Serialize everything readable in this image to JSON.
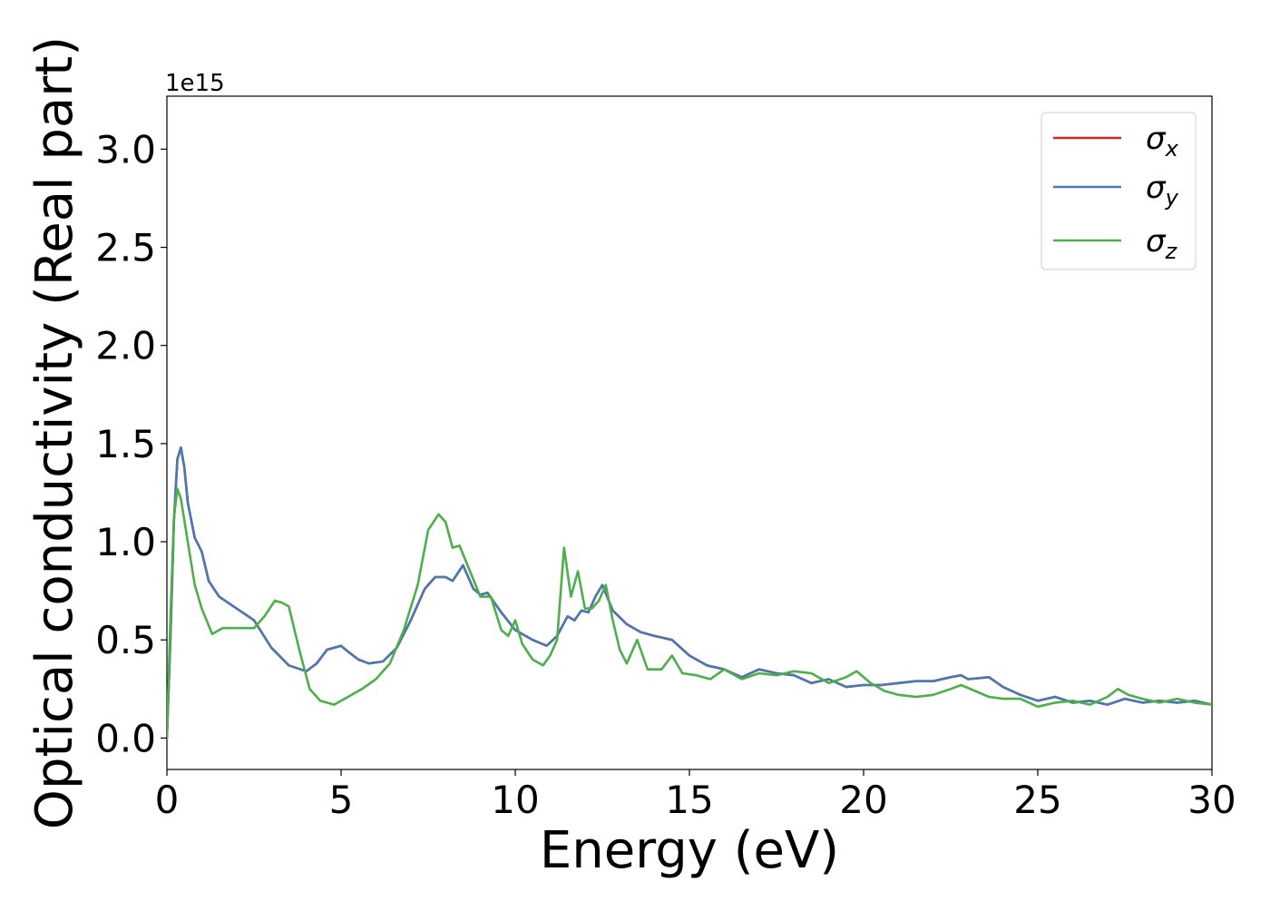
{
  "chart_data": {
    "type": "line",
    "xlabel": "Energy (eV)",
    "ylabel": "Optical conductivity (Real part)",
    "offset_label": "1e15",
    "scale": 1000000000000000.0,
    "xlim": [
      0,
      30
    ],
    "ylim": [
      -0.16,
      3.27
    ],
    "x_ticks": [
      0,
      5,
      10,
      15,
      20,
      25,
      30
    ],
    "y_ticks": [
      0.0,
      0.5,
      1.0,
      1.5,
      2.0,
      2.5,
      3.0
    ],
    "x_tick_labels": [
      "0",
      "5",
      "10",
      "15",
      "20",
      "25",
      "30"
    ],
    "y_tick_labels": [
      "0.0",
      "0.5",
      "1.0",
      "1.5",
      "2.0",
      "2.5",
      "3.0"
    ],
    "grid": false,
    "legend_position": "top-right",
    "series": [
      {
        "name": "σx",
        "legend_base": "σ",
        "legend_sub": "x",
        "color": "#d62728",
        "x": [
          0,
          0.1,
          0.2,
          0.3,
          0.4,
          0.5,
          0.6,
          0.8,
          1.0,
          1.2,
          1.5,
          2.0,
          2.5,
          3.0,
          3.5,
          4.0,
          4.3,
          4.6,
          5.0,
          5.2,
          5.5,
          5.8,
          6.2,
          6.6,
          7.0,
          7.4,
          7.7,
          8.0,
          8.2,
          8.5,
          8.8,
          9.0,
          9.2,
          9.6,
          10.0,
          10.5,
          10.9,
          11.2,
          11.5,
          11.7,
          11.9,
          12.1,
          12.3,
          12.5,
          12.8,
          13.2,
          13.6,
          14.0,
          14.5,
          15.0,
          15.5,
          16.0,
          16.5,
          17.0,
          17.5,
          18.0,
          18.5,
          19.0,
          19.5,
          20.0,
          20.5,
          21.0,
          21.5,
          22.0,
          22.5,
          22.8,
          23.0,
          23.6,
          24.0,
          24.5,
          25.0,
          25.5,
          26.0,
          26.5,
          27.0,
          27.5,
          28.0,
          28.5,
          29.0,
          29.5,
          30.0
        ],
        "values": [
          0.0,
          0.5,
          1.1,
          1.42,
          1.48,
          1.38,
          1.2,
          1.02,
          0.95,
          0.8,
          0.72,
          0.66,
          0.6,
          0.46,
          0.37,
          0.34,
          0.38,
          0.45,
          0.47,
          0.44,
          0.4,
          0.38,
          0.39,
          0.46,
          0.6,
          0.76,
          0.82,
          0.82,
          0.8,
          0.88,
          0.76,
          0.73,
          0.74,
          0.64,
          0.55,
          0.5,
          0.47,
          0.52,
          0.62,
          0.6,
          0.65,
          0.64,
          0.72,
          0.78,
          0.65,
          0.58,
          0.54,
          0.52,
          0.5,
          0.42,
          0.37,
          0.35,
          0.31,
          0.35,
          0.33,
          0.32,
          0.28,
          0.3,
          0.26,
          0.27,
          0.27,
          0.28,
          0.29,
          0.29,
          0.31,
          0.32,
          0.3,
          0.31,
          0.26,
          0.22,
          0.19,
          0.21,
          0.18,
          0.19,
          0.17,
          0.2,
          0.18,
          0.19,
          0.18,
          0.19,
          0.17
        ]
      },
      {
        "name": "σy",
        "legend_base": "σ",
        "legend_sub": "y",
        "color": "#4a78b0",
        "x": [
          0,
          0.1,
          0.2,
          0.3,
          0.4,
          0.5,
          0.6,
          0.8,
          1.0,
          1.2,
          1.5,
          2.0,
          2.5,
          3.0,
          3.5,
          4.0,
          4.3,
          4.6,
          5.0,
          5.2,
          5.5,
          5.8,
          6.2,
          6.6,
          7.0,
          7.4,
          7.7,
          8.0,
          8.2,
          8.5,
          8.8,
          9.0,
          9.2,
          9.6,
          10.0,
          10.5,
          10.9,
          11.2,
          11.5,
          11.7,
          11.9,
          12.1,
          12.3,
          12.5,
          12.8,
          13.2,
          13.6,
          14.0,
          14.5,
          15.0,
          15.5,
          16.0,
          16.5,
          17.0,
          17.5,
          18.0,
          18.5,
          19.0,
          19.5,
          20.0,
          20.5,
          21.0,
          21.5,
          22.0,
          22.5,
          22.8,
          23.0,
          23.6,
          24.0,
          24.5,
          25.0,
          25.5,
          26.0,
          26.5,
          27.0,
          27.5,
          28.0,
          28.5,
          29.0,
          29.5,
          30.0
        ],
        "values": [
          0.0,
          0.5,
          1.1,
          1.42,
          1.48,
          1.38,
          1.2,
          1.02,
          0.95,
          0.8,
          0.72,
          0.66,
          0.6,
          0.46,
          0.37,
          0.34,
          0.38,
          0.45,
          0.47,
          0.44,
          0.4,
          0.38,
          0.39,
          0.46,
          0.6,
          0.76,
          0.82,
          0.82,
          0.8,
          0.88,
          0.76,
          0.73,
          0.74,
          0.64,
          0.55,
          0.5,
          0.47,
          0.52,
          0.62,
          0.6,
          0.65,
          0.64,
          0.72,
          0.78,
          0.65,
          0.58,
          0.54,
          0.52,
          0.5,
          0.42,
          0.37,
          0.35,
          0.31,
          0.35,
          0.33,
          0.32,
          0.28,
          0.3,
          0.26,
          0.27,
          0.27,
          0.28,
          0.29,
          0.29,
          0.31,
          0.32,
          0.3,
          0.31,
          0.26,
          0.22,
          0.19,
          0.21,
          0.18,
          0.19,
          0.17,
          0.2,
          0.18,
          0.19,
          0.18,
          0.19,
          0.17
        ]
      },
      {
        "name": "σz",
        "legend_base": "σ",
        "legend_sub": "z",
        "color": "#4daf4a",
        "x": [
          0,
          0.1,
          0.2,
          0.3,
          0.4,
          0.6,
          0.8,
          1.0,
          1.3,
          1.6,
          2.0,
          2.5,
          2.8,
          3.1,
          3.3,
          3.5,
          3.8,
          4.1,
          4.4,
          4.8,
          5.2,
          5.6,
          6.0,
          6.4,
          6.8,
          7.2,
          7.5,
          7.8,
          8.0,
          8.2,
          8.4,
          8.7,
          9.0,
          9.3,
          9.6,
          9.8,
          10.0,
          10.2,
          10.5,
          10.8,
          11.0,
          11.2,
          11.4,
          11.6,
          11.8,
          12.0,
          12.2,
          12.4,
          12.6,
          12.8,
          13.0,
          13.2,
          13.5,
          13.8,
          14.2,
          14.5,
          14.8,
          15.2,
          15.6,
          16.0,
          16.5,
          17.0,
          17.5,
          18.0,
          18.5,
          19.0,
          19.5,
          19.8,
          20.2,
          20.6,
          21.0,
          21.5,
          22.0,
          22.5,
          22.8,
          23.2,
          23.6,
          24.0,
          24.5,
          25.0,
          25.5,
          26.0,
          26.5,
          27.0,
          27.3,
          27.6,
          28.0,
          28.5,
          29.0,
          29.5,
          30.0
        ],
        "values": [
          0.0,
          0.6,
          1.12,
          1.27,
          1.22,
          1.0,
          0.78,
          0.66,
          0.53,
          0.56,
          0.56,
          0.56,
          0.62,
          0.7,
          0.69,
          0.67,
          0.45,
          0.25,
          0.19,
          0.17,
          0.21,
          0.25,
          0.3,
          0.38,
          0.55,
          0.78,
          1.06,
          1.14,
          1.1,
          0.97,
          0.98,
          0.85,
          0.72,
          0.72,
          0.55,
          0.52,
          0.6,
          0.48,
          0.4,
          0.37,
          0.42,
          0.5,
          0.97,
          0.72,
          0.85,
          0.66,
          0.66,
          0.7,
          0.78,
          0.6,
          0.45,
          0.38,
          0.5,
          0.35,
          0.35,
          0.42,
          0.33,
          0.32,
          0.3,
          0.35,
          0.3,
          0.33,
          0.32,
          0.34,
          0.33,
          0.28,
          0.31,
          0.34,
          0.28,
          0.24,
          0.22,
          0.21,
          0.22,
          0.25,
          0.27,
          0.24,
          0.21,
          0.2,
          0.2,
          0.16,
          0.18,
          0.19,
          0.17,
          0.21,
          0.25,
          0.22,
          0.2,
          0.18,
          0.2,
          0.18,
          0.17
        ]
      }
    ]
  }
}
